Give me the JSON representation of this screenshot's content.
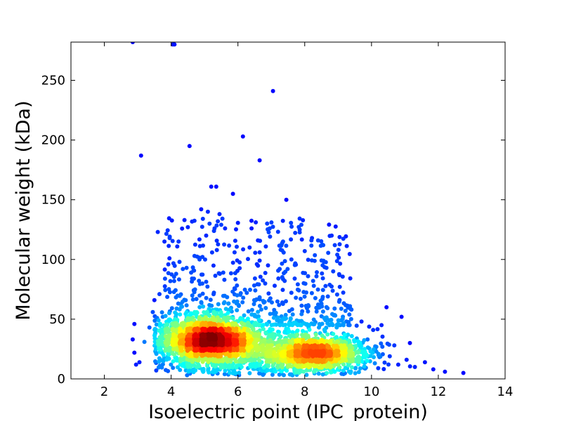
{
  "chart_data": {
    "type": "scatter",
    "title": "",
    "xlabel": "Isoelectric point (IPC_protein)",
    "ylabel": "Molecular weight (kDa)",
    "xlim": [
      1,
      14
    ],
    "ylim": [
      0,
      282
    ],
    "x_ticks": [
      2,
      4,
      6,
      8,
      10,
      12,
      14
    ],
    "y_ticks": [
      0,
      50,
      100,
      150,
      200,
      250
    ],
    "grid": false,
    "legend": "none",
    "colormap": "jet (point density)",
    "colors": {
      "low_density": "#00008f",
      "mid_density": "#00ffff",
      "high_density": "#ff0000",
      "frame": "#000000"
    },
    "density_clusters": [
      {
        "center": [
          5.2,
          32
        ],
        "spread": [
          0.75,
          12
        ],
        "share": 0.55
      },
      {
        "center": [
          8.3,
          22
        ],
        "spread": [
          0.8,
          10
        ],
        "share": 0.32
      },
      {
        "center": [
          6.8,
          18
        ],
        "spread": [
          1.5,
          12
        ],
        "share": 0.13
      }
    ],
    "points": [
      [
        2.85,
        282
      ],
      [
        4.05,
        280
      ],
      [
        4.1,
        280
      ],
      [
        7.05,
        241
      ],
      [
        6.15,
        203
      ],
      [
        3.1,
        187
      ],
      [
        4.55,
        195
      ],
      [
        6.65,
        183
      ],
      [
        5.2,
        161
      ],
      [
        5.35,
        161
      ],
      [
        5.85,
        155
      ],
      [
        7.45,
        150
      ],
      [
        4.9,
        142
      ],
      [
        5.1,
        140
      ],
      [
        5.45,
        138
      ],
      [
        4.95,
        134
      ],
      [
        4.4,
        133
      ],
      [
        5.15,
        130
      ],
      [
        5.5,
        129
      ],
      [
        4.5,
        127
      ],
      [
        6.95,
        126
      ],
      [
        7.9,
        129
      ],
      [
        7.85,
        125
      ],
      [
        3.6,
        123
      ],
      [
        5.3,
        126
      ],
      [
        5.05,
        120
      ],
      [
        3.8,
        115
      ],
      [
        6.6,
        116
      ],
      [
        7.35,
        115
      ],
      [
        8.4,
        116
      ],
      [
        8.2,
        116
      ],
      [
        8.9,
        112
      ],
      [
        5.9,
        106
      ],
      [
        6.35,
        110
      ],
      [
        6.65,
        106
      ],
      [
        8.0,
        107
      ],
      [
        4.7,
        103
      ],
      [
        4.85,
        100
      ],
      [
        4.25,
        98
      ],
      [
        3.95,
        101
      ],
      [
        7.6,
        100
      ],
      [
        6.9,
        95
      ],
      [
        7.25,
        92
      ],
      [
        8.65,
        93
      ],
      [
        4.35,
        92
      ],
      [
        4.6,
        89
      ],
      [
        4.15,
        88
      ],
      [
        8.1,
        86
      ],
      [
        7.7,
        84
      ],
      [
        7.4,
        82
      ],
      [
        8.25,
        82
      ],
      [
        9.05,
        77
      ],
      [
        9.4,
        58
      ],
      [
        10.45,
        60
      ],
      [
        10.9,
        52
      ],
      [
        10.3,
        45
      ],
      [
        9.7,
        48
      ],
      [
        10.05,
        41
      ],
      [
        11.15,
        30
      ],
      [
        11.6,
        14
      ],
      [
        11.85,
        8
      ],
      [
        12.2,
        6
      ],
      [
        12.75,
        5
      ],
      [
        11.3,
        10
      ],
      [
        10.8,
        12
      ],
      [
        11.05,
        16
      ],
      [
        2.9,
        46
      ],
      [
        2.85,
        33
      ],
      [
        2.9,
        22
      ],
      [
        3.05,
        14
      ],
      [
        2.95,
        12
      ],
      [
        3.2,
        31
      ],
      [
        3.35,
        43
      ],
      [
        3.55,
        41
      ],
      [
        3.45,
        56
      ],
      [
        3.65,
        71
      ],
      [
        3.5,
        66
      ],
      [
        3.75,
        52
      ]
    ]
  }
}
